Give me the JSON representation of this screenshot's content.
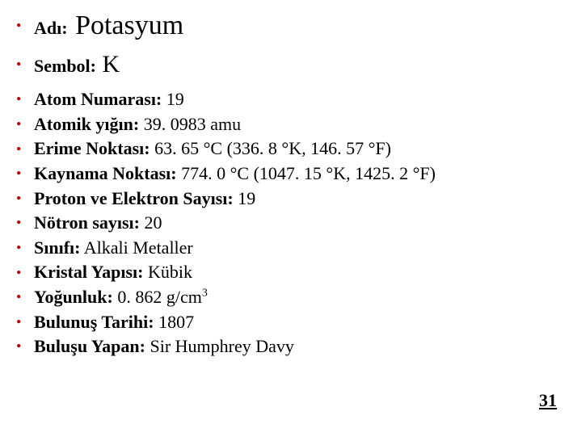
{
  "bullet_color": "#c00000",
  "name": {
    "label": "Adı:",
    "value": "Potasyum"
  },
  "symbol": {
    "label": "Sembol:",
    "value": "K"
  },
  "properties": [
    {
      "label": "Atom Numarası:",
      "value": " 19"
    },
    {
      "label": "Atomik yığın:",
      "value": " 39. 0983 amu"
    },
    {
      "label": "Erime Noktası:",
      "value": " 63. 65 °C (336. 8 °K, 146. 57 °F)"
    },
    {
      "label": "Kaynama Noktası:",
      "value": " 774. 0 °C (1047. 15 °K, 1425. 2 °F)"
    },
    {
      "label": "Proton ve Elektron Sayısı:",
      "value": " 19"
    },
    {
      "label": "Nötron sayısı:",
      "value": " 20"
    },
    {
      "label": "Sınıfı:",
      "value": " Alkali Metaller"
    },
    {
      "label": "Kristal Yapısı:",
      "value": " Kübik"
    },
    {
      "label": "Yoğunluk:",
      "value_prefix": " 0. 862 g/cm",
      "value_sup": "3"
    },
    {
      "label": "Bulunuş Tarihi:",
      "value": " 1807"
    },
    {
      "label": "Buluşu Yapan:",
      "value": " Sir Humphrey Davy"
    }
  ],
  "page_number": "31"
}
